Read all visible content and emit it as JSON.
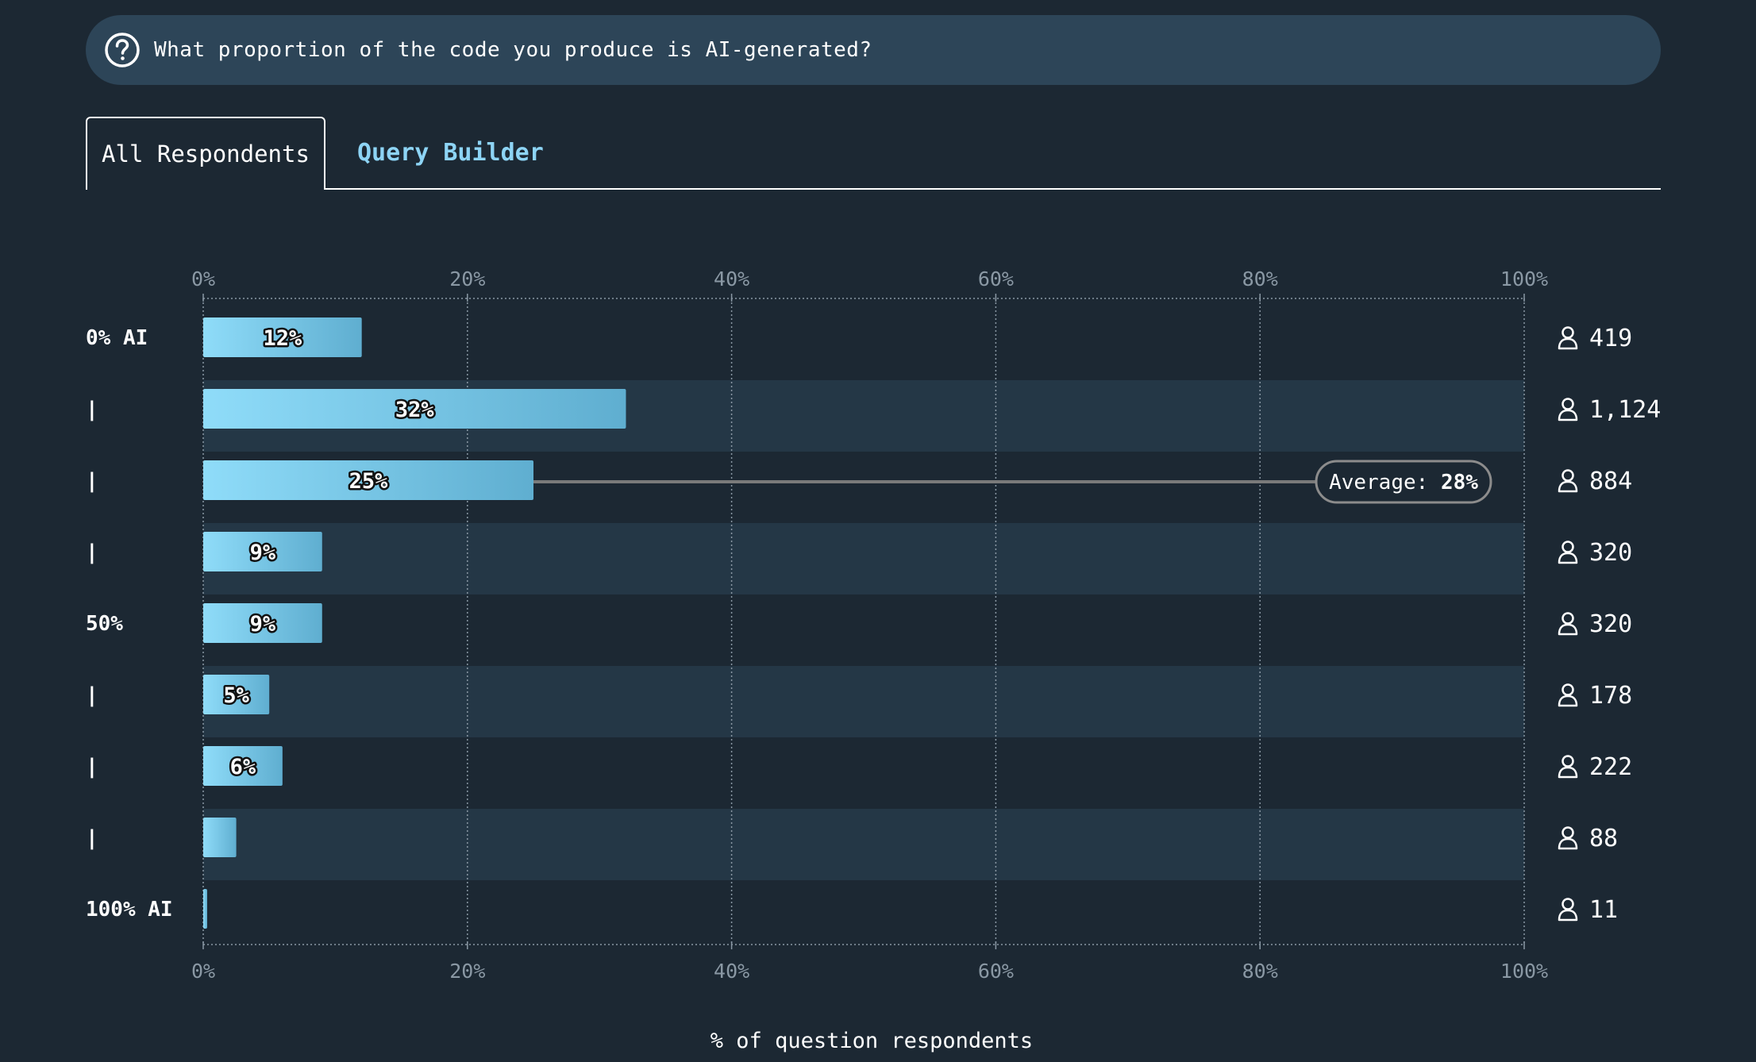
{
  "question": {
    "text": "What proportion of the code you produce is AI-generated?",
    "icon": "question-circle-icon"
  },
  "tabs": {
    "active_label": "All Respondents",
    "link_label": "Query Builder"
  },
  "colors": {
    "background": "#1c2833",
    "question_bg": "#2d4558",
    "stripe": "#243746",
    "bar_start": "#8fdcf9",
    "bar_end": "#5faed0",
    "link": "#8dd4f5",
    "tick": "#8a98a4"
  },
  "chart_data": {
    "type": "bar",
    "orientation": "horizontal",
    "categories": [
      "0% AI",
      "|",
      "|",
      "|",
      "50%",
      "|",
      "|",
      "|",
      "100% AI"
    ],
    "values": [
      12,
      32,
      25,
      9,
      9,
      5,
      6,
      2.5,
      0.3
    ],
    "value_labels": [
      "12%",
      "32%",
      "25%",
      "9%",
      "9%",
      "5%",
      "6%",
      "",
      ""
    ],
    "counts": [
      "419",
      "1,124",
      "884",
      "320",
      "320",
      "178",
      "222",
      "88",
      "11"
    ],
    "xlim": [
      0,
      100
    ],
    "x_ticks": [
      "0%",
      "20%",
      "40%",
      "60%",
      "80%",
      "100%"
    ],
    "x_tick_values": [
      0,
      20,
      40,
      60,
      80,
      100
    ],
    "xlabel": "% of question respondents",
    "grid": true,
    "average": {
      "prefix": "Average:",
      "value_label": "28%",
      "category_index": 2
    },
    "count_icon": "person-icon"
  }
}
